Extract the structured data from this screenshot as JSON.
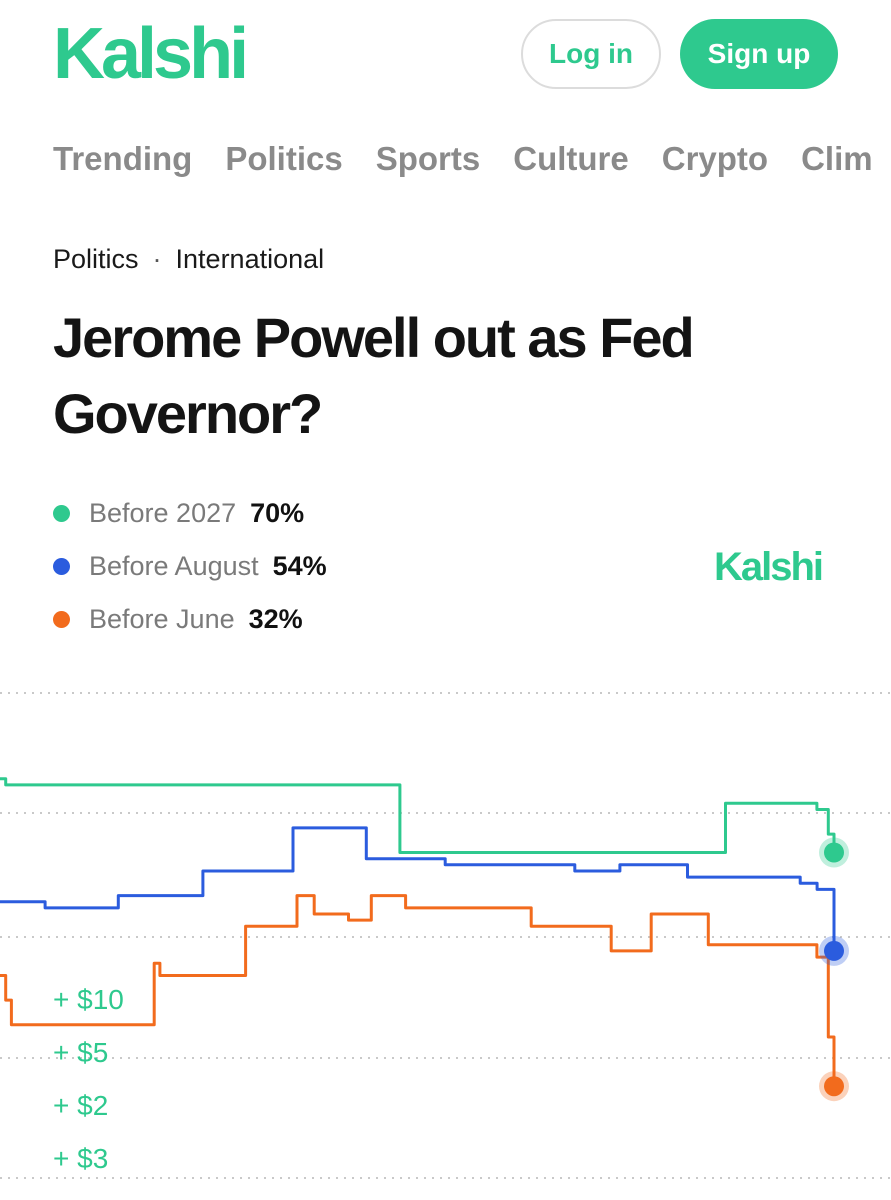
{
  "colors": {
    "brand": "#2ec98e",
    "green": "#2ec98e",
    "blue": "#2b5cde",
    "orange": "#f26b1d",
    "grid": "#c9c9c9"
  },
  "header": {
    "logo": "Kalshi",
    "login_label": "Log in",
    "signup_label": "Sign up"
  },
  "nav": {
    "items": [
      "Trending",
      "Politics",
      "Sports",
      "Culture",
      "Crypto",
      "Clim"
    ]
  },
  "breadcrumb": {
    "category": "Politics",
    "separator": "·",
    "subcategory": "International"
  },
  "market": {
    "title": "Jerome Powell out as Fed Governor?"
  },
  "legend": [
    {
      "name": "Before 2027",
      "percent": "70%"
    },
    {
      "name": "Before August",
      "percent": "54%"
    },
    {
      "name": "Before June",
      "percent": "32%"
    }
  ],
  "watermark": "Kalshi",
  "chart_data": {
    "type": "line",
    "grid": "dotted horizontal",
    "series": [
      {
        "name": "Before 2027",
        "color": "#2ec98e",
        "values": [
          82,
          81,
          81,
          81,
          81,
          81,
          81,
          81,
          81,
          81,
          81,
          81,
          81,
          81,
          81,
          81,
          81,
          81,
          81,
          81,
          81,
          81,
          81,
          81,
          81,
          81,
          81,
          81,
          81,
          81,
          81,
          81,
          81,
          81,
          81,
          81,
          81,
          81,
          81,
          81,
          81,
          81,
          81,
          81,
          81,
          81,
          81,
          81,
          81,
          81,
          81,
          81,
          81,
          81,
          81,
          81,
          81,
          81,
          81,
          81,
          81,
          81,
          81,
          81,
          81,
          81,
          81,
          81,
          81,
          81,
          70,
          70,
          70,
          70,
          70,
          70,
          70,
          70,
          70,
          70,
          70,
          70,
          70,
          70,
          70,
          70,
          70,
          70,
          70,
          70,
          70,
          70,
          70,
          70,
          70,
          70,
          70,
          70,
          70,
          70,
          70,
          70,
          70,
          70,
          70,
          70,
          70,
          70,
          70,
          70,
          70,
          70,
          70,
          70,
          70,
          70,
          70,
          70,
          70,
          70,
          70,
          70,
          70,
          70,
          70,
          70,
          70,
          78,
          78,
          78,
          78,
          78,
          78,
          78,
          78,
          78,
          78,
          78,
          78,
          78,
          78,
          78,
          78,
          77,
          77,
          73,
          70
        ]
      },
      {
        "name": "Before August",
        "color": "#2b5cde",
        "values": [
          62,
          62,
          62,
          62,
          62,
          62,
          62,
          62,
          61,
          61,
          61,
          61,
          61,
          61,
          61,
          61,
          61,
          61,
          61,
          61,
          61,
          63,
          63,
          63,
          63,
          63,
          63,
          63,
          63,
          63,
          63,
          63,
          63,
          63,
          63,
          63,
          67,
          67,
          67,
          67,
          67,
          67,
          67,
          67,
          67,
          67,
          67,
          67,
          67,
          67,
          67,
          67,
          74,
          74,
          74,
          74,
          74,
          74,
          74,
          74,
          74,
          74,
          74,
          74,
          74,
          69,
          69,
          69,
          69,
          69,
          69,
          69,
          69,
          69,
          69,
          69,
          69,
          69,
          69,
          68,
          68,
          68,
          68,
          68,
          68,
          68,
          68,
          68,
          68,
          68,
          68,
          68,
          68,
          68,
          68,
          68,
          68,
          68,
          68,
          68,
          68,
          68,
          67,
          67,
          67,
          67,
          67,
          67,
          67,
          67,
          68,
          68,
          68,
          68,
          68,
          68,
          68,
          68,
          68,
          68,
          68,
          68,
          66,
          66,
          66,
          66,
          66,
          66,
          66,
          66,
          66,
          66,
          66,
          66,
          66,
          66,
          66,
          66,
          66,
          66,
          66,
          66,
          65,
          65,
          65,
          64,
          64,
          64,
          54
        ]
      },
      {
        "name": "Before June",
        "color": "#f26b1d",
        "values": [
          50,
          46,
          42,
          42,
          42,
          42,
          42,
          42,
          42,
          42,
          42,
          42,
          42,
          42,
          42,
          42,
          42,
          42,
          42,
          42,
          42,
          42,
          42,
          42,
          42,
          42,
          42,
          52,
          50,
          50,
          50,
          50,
          50,
          50,
          50,
          50,
          50,
          50,
          50,
          50,
          50,
          50,
          50,
          58,
          58,
          58,
          58,
          58,
          58,
          58,
          58,
          58,
          63,
          63,
          63,
          60,
          60,
          60,
          60,
          60,
          60,
          59,
          59,
          59,
          59,
          63,
          63,
          63,
          63,
          63,
          63,
          61,
          61,
          61,
          61,
          61,
          61,
          61,
          61,
          61,
          61,
          61,
          61,
          61,
          61,
          61,
          61,
          61,
          61,
          61,
          61,
          61,
          61,
          58,
          58,
          58,
          58,
          58,
          58,
          58,
          58,
          58,
          58,
          58,
          58,
          58,
          58,
          54,
          54,
          54,
          54,
          54,
          54,
          54,
          60,
          60,
          60,
          60,
          60,
          60,
          60,
          60,
          60,
          60,
          55,
          55,
          55,
          55,
          55,
          55,
          55,
          55,
          55,
          55,
          55,
          55,
          55,
          55,
          55,
          55,
          55,
          55,
          55,
          53,
          53,
          40,
          32
        ]
      }
    ]
  },
  "deltas": [
    "+ $10",
    "+ $5",
    "+ $2",
    "+ $3"
  ]
}
